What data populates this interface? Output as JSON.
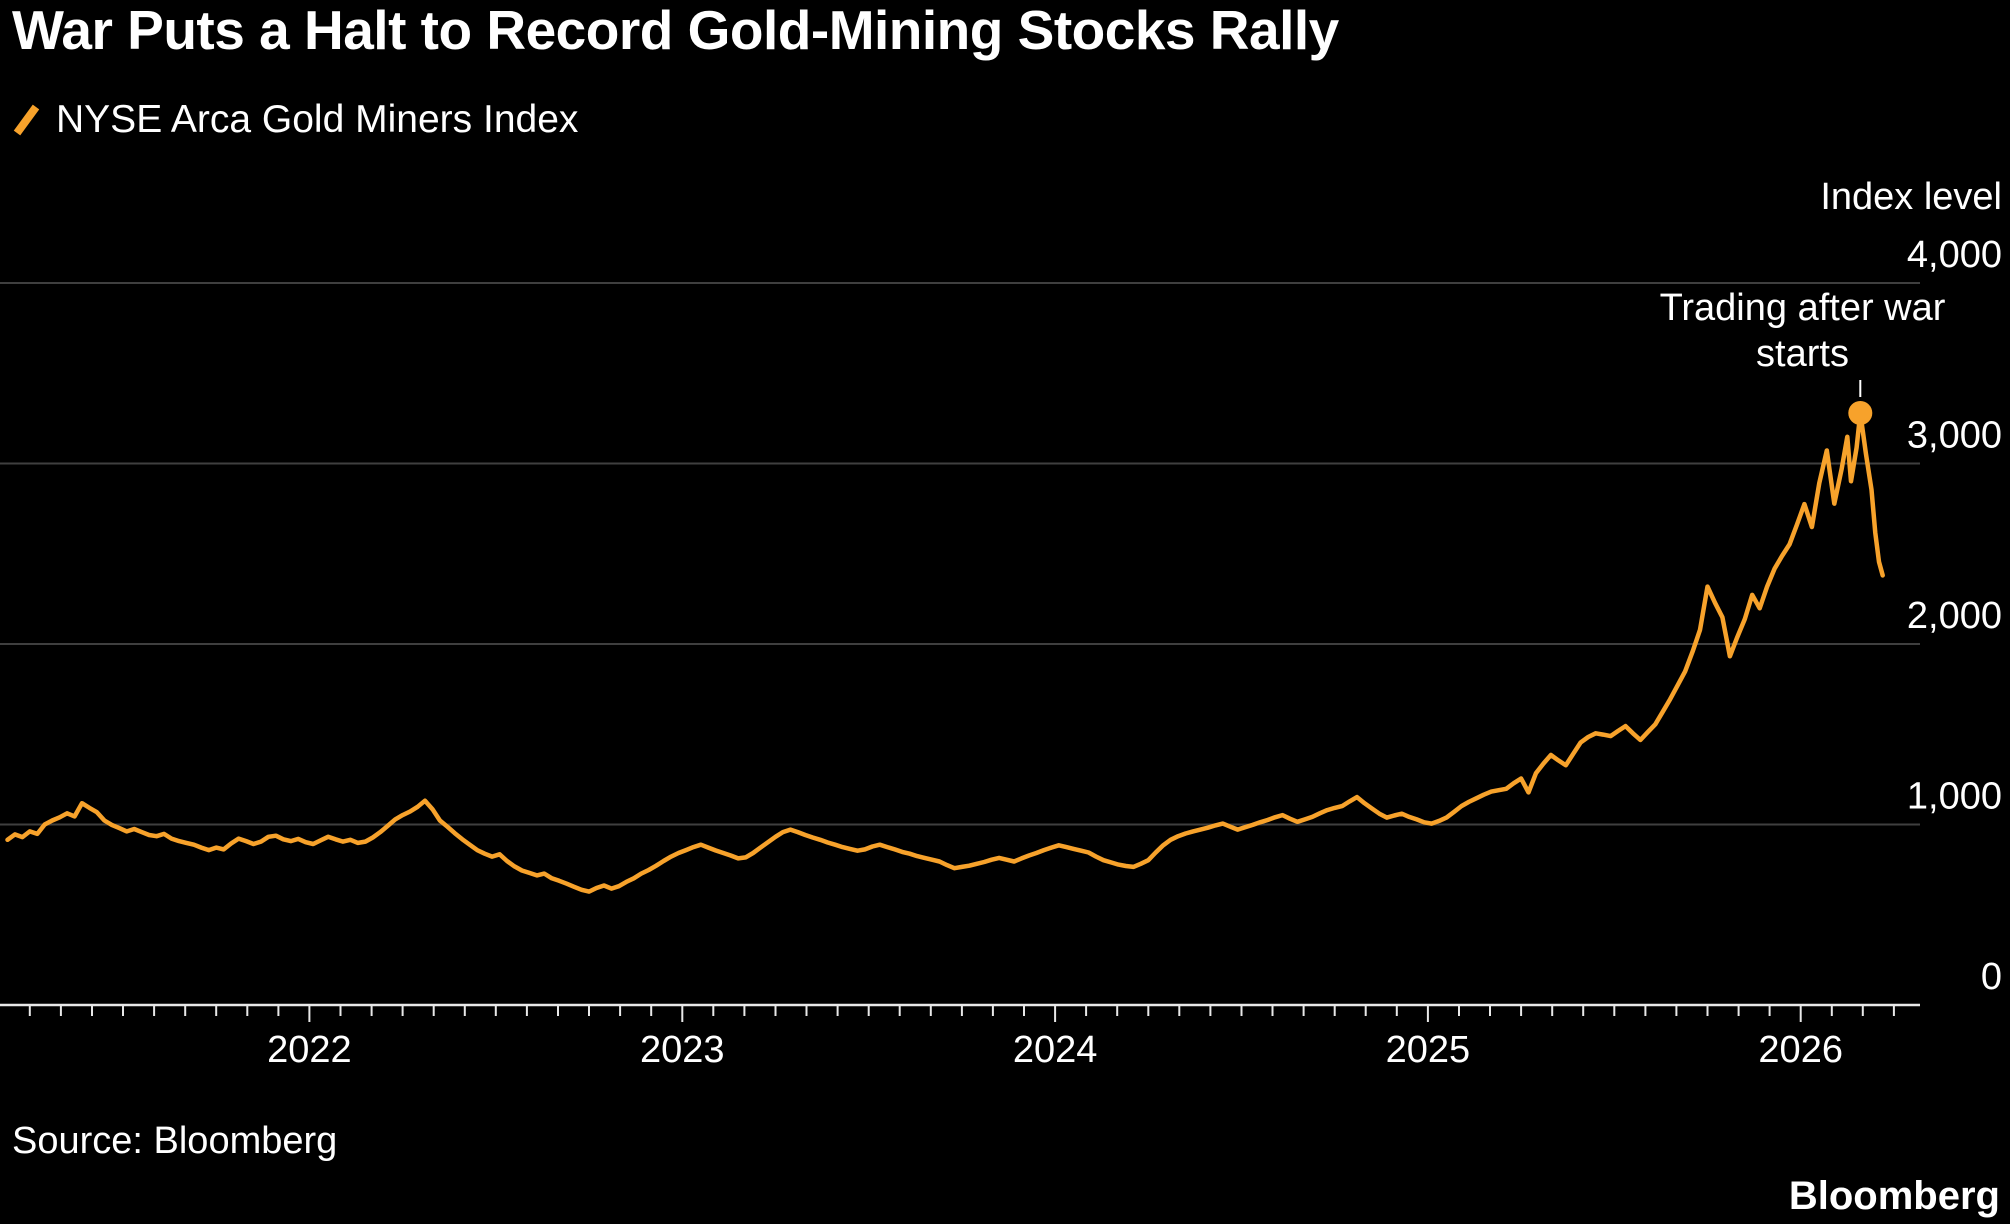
{
  "header": {
    "title": "War Puts a Halt to Record Gold-Mining Stocks Rally",
    "legend_label": "NYSE Arca Gold Miners Index"
  },
  "footer": {
    "source": "Source: Bloomberg",
    "brand": "Bloomberg"
  },
  "chart_data": {
    "type": "line",
    "title": "War Puts a Halt to Record Gold-Mining Stocks Rally",
    "series_name": "NYSE Arca Gold Miners Index",
    "y_axis_title": "Index level",
    "y_range": [
      0,
      4000
    ],
    "x_range": [
      2021.17,
      2026.32
    ],
    "y_ticks": [
      4000,
      3000,
      2000,
      1000,
      0
    ],
    "y_tick_labels": [
      "4,000",
      "3,000",
      "2,000",
      "1,000",
      "0"
    ],
    "x_tick_years": [
      2022,
      2023,
      2024,
      2025,
      2026
    ],
    "x_tick_labels": [
      "2022",
      "2023",
      "2024",
      "2025",
      "2026"
    ],
    "grid_on": true,
    "legend_position": "top-left",
    "line_color": "#F7A22B",
    "grid_color": "#3F3F3F",
    "axis_color": "#E8E8E8",
    "text_color": "#FFFFFF",
    "annotation": {
      "text": "Trading after war starts",
      "year": 2026.16,
      "value": 3280
    },
    "marker": {
      "year": 2026.16,
      "value": 3280
    },
    "points": [
      [
        2021.19,
        915
      ],
      [
        2021.21,
        945
      ],
      [
        2021.23,
        930
      ],
      [
        2021.25,
        962
      ],
      [
        2021.27,
        948
      ],
      [
        2021.29,
        1000
      ],
      [
        2021.31,
        1022
      ],
      [
        2021.33,
        1040
      ],
      [
        2021.35,
        1062
      ],
      [
        2021.37,
        1045
      ],
      [
        2021.39,
        1118
      ],
      [
        2021.41,
        1092
      ],
      [
        2021.43,
        1068
      ],
      [
        2021.45,
        1022
      ],
      [
        2021.47,
        998
      ],
      [
        2021.49,
        980
      ],
      [
        2021.51,
        962
      ],
      [
        2021.53,
        975
      ],
      [
        2021.55,
        958
      ],
      [
        2021.57,
        942
      ],
      [
        2021.59,
        935
      ],
      [
        2021.61,
        948
      ],
      [
        2021.63,
        922
      ],
      [
        2021.65,
        908
      ],
      [
        2021.67,
        898
      ],
      [
        2021.69,
        888
      ],
      [
        2021.71,
        872
      ],
      [
        2021.73,
        858
      ],
      [
        2021.75,
        872
      ],
      [
        2021.77,
        862
      ],
      [
        2021.79,
        895
      ],
      [
        2021.81,
        922
      ],
      [
        2021.83,
        908
      ],
      [
        2021.85,
        892
      ],
      [
        2021.87,
        905
      ],
      [
        2021.89,
        932
      ],
      [
        2021.91,
        938
      ],
      [
        2021.93,
        918
      ],
      [
        2021.95,
        908
      ],
      [
        2021.97,
        920
      ],
      [
        2021.99,
        902
      ],
      [
        2022.01,
        892
      ],
      [
        2022.03,
        912
      ],
      [
        2022.05,
        932
      ],
      [
        2022.07,
        918
      ],
      [
        2022.09,
        905
      ],
      [
        2022.11,
        915
      ],
      [
        2022.13,
        898
      ],
      [
        2022.15,
        905
      ],
      [
        2022.17,
        928
      ],
      [
        2022.19,
        958
      ],
      [
        2022.21,
        992
      ],
      [
        2022.23,
        1028
      ],
      [
        2022.25,
        1052
      ],
      [
        2022.27,
        1072
      ],
      [
        2022.29,
        1098
      ],
      [
        2022.31,
        1132
      ],
      [
        2022.33,
        1085
      ],
      [
        2022.35,
        1022
      ],
      [
        2022.37,
        988
      ],
      [
        2022.39,
        952
      ],
      [
        2022.41,
        918
      ],
      [
        2022.43,
        888
      ],
      [
        2022.45,
        858
      ],
      [
        2022.47,
        838
      ],
      [
        2022.49,
        822
      ],
      [
        2022.51,
        835
      ],
      [
        2022.53,
        798
      ],
      [
        2022.55,
        768
      ],
      [
        2022.57,
        745
      ],
      [
        2022.59,
        732
      ],
      [
        2022.61,
        718
      ],
      [
        2022.63,
        728
      ],
      [
        2022.65,
        702
      ],
      [
        2022.67,
        688
      ],
      [
        2022.69,
        672
      ],
      [
        2022.71,
        655
      ],
      [
        2022.73,
        638
      ],
      [
        2022.75,
        628
      ],
      [
        2022.77,
        648
      ],
      [
        2022.79,
        662
      ],
      [
        2022.81,
        645
      ],
      [
        2022.83,
        658
      ],
      [
        2022.85,
        682
      ],
      [
        2022.87,
        702
      ],
      [
        2022.89,
        728
      ],
      [
        2022.91,
        748
      ],
      [
        2022.93,
        772
      ],
      [
        2022.95,
        798
      ],
      [
        2022.97,
        822
      ],
      [
        2022.99,
        842
      ],
      [
        2023.01,
        858
      ],
      [
        2023.03,
        875
      ],
      [
        2023.05,
        888
      ],
      [
        2023.07,
        872
      ],
      [
        2023.09,
        856
      ],
      [
        2023.11,
        842
      ],
      [
        2023.13,
        828
      ],
      [
        2023.15,
        812
      ],
      [
        2023.17,
        818
      ],
      [
        2023.19,
        842
      ],
      [
        2023.21,
        872
      ],
      [
        2023.23,
        902
      ],
      [
        2023.25,
        932
      ],
      [
        2023.27,
        958
      ],
      [
        2023.29,
        972
      ],
      [
        2023.31,
        958
      ],
      [
        2023.33,
        942
      ],
      [
        2023.35,
        928
      ],
      [
        2023.37,
        915
      ],
      [
        2023.39,
        900
      ],
      [
        2023.41,
        888
      ],
      [
        2023.43,
        875
      ],
      [
        2023.45,
        865
      ],
      [
        2023.47,
        855
      ],
      [
        2023.49,
        862
      ],
      [
        2023.51,
        878
      ],
      [
        2023.53,
        888
      ],
      [
        2023.55,
        875
      ],
      [
        2023.57,
        862
      ],
      [
        2023.59,
        848
      ],
      [
        2023.61,
        838
      ],
      [
        2023.63,
        825
      ],
      [
        2023.65,
        815
      ],
      [
        2023.67,
        805
      ],
      [
        2023.69,
        795
      ],
      [
        2023.71,
        775
      ],
      [
        2023.73,
        758
      ],
      [
        2023.75,
        765
      ],
      [
        2023.77,
        772
      ],
      [
        2023.79,
        782
      ],
      [
        2023.81,
        792
      ],
      [
        2023.83,
        805
      ],
      [
        2023.85,
        815
      ],
      [
        2023.87,
        805
      ],
      [
        2023.89,
        795
      ],
      [
        2023.91,
        812
      ],
      [
        2023.93,
        828
      ],
      [
        2023.95,
        842
      ],
      [
        2023.97,
        858
      ],
      [
        2023.99,
        872
      ],
      [
        2024.01,
        885
      ],
      [
        2024.03,
        875
      ],
      [
        2024.05,
        865
      ],
      [
        2024.07,
        855
      ],
      [
        2024.09,
        845
      ],
      [
        2024.11,
        822
      ],
      [
        2024.13,
        802
      ],
      [
        2024.15,
        790
      ],
      [
        2024.17,
        778
      ],
      [
        2024.19,
        770
      ],
      [
        2024.21,
        765
      ],
      [
        2024.23,
        782
      ],
      [
        2024.25,
        802
      ],
      [
        2024.27,
        845
      ],
      [
        2024.29,
        885
      ],
      [
        2024.31,
        915
      ],
      [
        2024.33,
        935
      ],
      [
        2024.35,
        950
      ],
      [
        2024.37,
        962
      ],
      [
        2024.39,
        972
      ],
      [
        2024.41,
        982
      ],
      [
        2024.43,
        995
      ],
      [
        2024.45,
        1005
      ],
      [
        2024.47,
        988
      ],
      [
        2024.49,
        972
      ],
      [
        2024.51,
        985
      ],
      [
        2024.53,
        998
      ],
      [
        2024.55,
        1012
      ],
      [
        2024.57,
        1025
      ],
      [
        2024.59,
        1040
      ],
      [
        2024.61,
        1052
      ],
      [
        2024.63,
        1032
      ],
      [
        2024.65,
        1015
      ],
      [
        2024.67,
        1028
      ],
      [
        2024.69,
        1042
      ],
      [
        2024.71,
        1062
      ],
      [
        2024.73,
        1080
      ],
      [
        2024.75,
        1092
      ],
      [
        2024.77,
        1102
      ],
      [
        2024.79,
        1128
      ],
      [
        2024.81,
        1152
      ],
      [
        2024.83,
        1118
      ],
      [
        2024.85,
        1088
      ],
      [
        2024.87,
        1060
      ],
      [
        2024.89,
        1038
      ],
      [
        2024.91,
        1050
      ],
      [
        2024.93,
        1060
      ],
      [
        2024.95,
        1042
      ],
      [
        2024.97,
        1028
      ],
      [
        2024.99,
        1012
      ],
      [
        2025.01,
        1005
      ],
      [
        2025.03,
        1020
      ],
      [
        2025.05,
        1038
      ],
      [
        2025.07,
        1070
      ],
      [
        2025.09,
        1102
      ],
      [
        2025.11,
        1125
      ],
      [
        2025.13,
        1145
      ],
      [
        2025.15,
        1165
      ],
      [
        2025.17,
        1182
      ],
      [
        2025.19,
        1190
      ],
      [
        2025.21,
        1198
      ],
      [
        2025.23,
        1228
      ],
      [
        2025.25,
        1255
      ],
      [
        2025.27,
        1178
      ],
      [
        2025.29,
        1285
      ],
      [
        2025.31,
        1338
      ],
      [
        2025.33,
        1385
      ],
      [
        2025.35,
        1355
      ],
      [
        2025.37,
        1328
      ],
      [
        2025.39,
        1392
      ],
      [
        2025.41,
        1455
      ],
      [
        2025.43,
        1485
      ],
      [
        2025.45,
        1505
      ],
      [
        2025.47,
        1498
      ],
      [
        2025.49,
        1490
      ],
      [
        2025.51,
        1518
      ],
      [
        2025.53,
        1545
      ],
      [
        2025.55,
        1505
      ],
      [
        2025.57,
        1468
      ],
      [
        2025.59,
        1512
      ],
      [
        2025.61,
        1555
      ],
      [
        2025.63,
        1625
      ],
      [
        2025.65,
        1695
      ],
      [
        2025.67,
        1772
      ],
      [
        2025.69,
        1848
      ],
      [
        2025.71,
        1958
      ],
      [
        2025.73,
        2078
      ],
      [
        2025.75,
        2318
      ],
      [
        2025.77,
        2228
      ],
      [
        2025.79,
        2148
      ],
      [
        2025.81,
        1932
      ],
      [
        2025.83,
        2038
      ],
      [
        2025.85,
        2138
      ],
      [
        2025.87,
        2272
      ],
      [
        2025.89,
        2198
      ],
      [
        2025.91,
        2318
      ],
      [
        2025.93,
        2418
      ],
      [
        2025.95,
        2488
      ],
      [
        2025.97,
        2552
      ],
      [
        2025.99,
        2662
      ],
      [
        2026.01,
        2775
      ],
      [
        2026.03,
        2648
      ],
      [
        2026.05,
        2892
      ],
      [
        2026.07,
        3072
      ],
      [
        2026.09,
        2778
      ],
      [
        2026.11,
        2972
      ],
      [
        2026.125,
        3148
      ],
      [
        2026.135,
        2902
      ],
      [
        2026.15,
        3088
      ],
      [
        2026.16,
        3280
      ],
      [
        2026.175,
        3055
      ],
      [
        2026.19,
        2855
      ],
      [
        2026.2,
        2615
      ],
      [
        2026.21,
        2455
      ],
      [
        2026.22,
        2380
      ]
    ]
  }
}
